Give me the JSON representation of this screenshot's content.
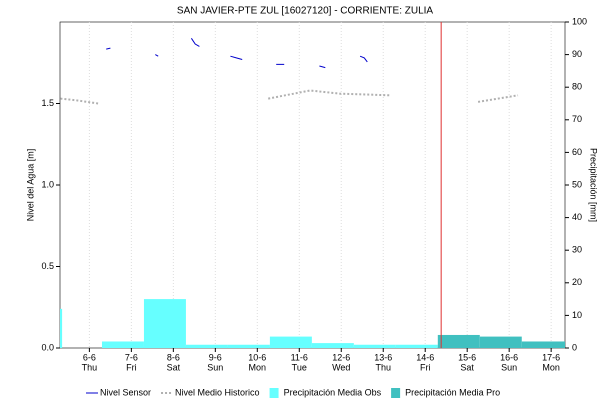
{
  "chart_data": {
    "type": "combo",
    "title": "SAN JAVIER-PTE ZUL [16027120] - CORRIENTE: ZULIA",
    "y_label": "Nivel del Agua [m]",
    "y2_label": "Precipitación [mm]",
    "xlim": [
      -0.7,
      11.33
    ],
    "xticks": [
      {
        "value": 0,
        "label": "6-6"
      },
      {
        "value": 1,
        "label": "7-6"
      },
      {
        "value": 2,
        "label": "8-6"
      },
      {
        "value": 3,
        "label": "9-6"
      },
      {
        "value": 4,
        "label": "10-6"
      },
      {
        "value": 5,
        "label": "11-6"
      },
      {
        "value": 6,
        "label": "12-6"
      },
      {
        "value": 7,
        "label": "13-6"
      },
      {
        "value": 8,
        "label": "14-6"
      },
      {
        "value": 9,
        "label": "15-6"
      },
      {
        "value": 10,
        "label": "16-6"
      },
      {
        "value": 11,
        "label": "17-6"
      }
    ],
    "xtick_days": [
      "Thu",
      "Fri",
      "Sat",
      "Sun",
      "Mon",
      "Tue",
      "Wed",
      "Thu",
      "Fri",
      "Sat",
      "Sun",
      "Mon"
    ],
    "ylim": [
      0,
      2
    ],
    "yticks": [
      {
        "value": 0,
        "label": "0.0"
      },
      0.5,
      {
        "value": 1,
        "label": "1.0"
      },
      1.5
    ],
    "y2lim": [
      0,
      100
    ],
    "y2ticks": [
      0,
      10,
      20,
      30,
      40,
      50,
      60,
      70,
      80,
      90,
      100
    ],
    "grid": true,
    "marker_x": 8.38,
    "marker_color": "#e03030",
    "series": [
      {
        "name": "Nivel Sensor",
        "kind": "line",
        "color": "#0000cc",
        "x": [
          0.4,
          0.5,
          null,
          1.57,
          1.64,
          null,
          2.43,
          2.52,
          2.62,
          null,
          3.36,
          3.5,
          3.64,
          null,
          4.45,
          4.64,
          null,
          5.48,
          5.62,
          null,
          6.45,
          6.55,
          6.62
        ],
        "values": [
          1.834,
          1.84,
          null,
          1.8,
          1.79,
          null,
          1.9,
          1.865,
          1.85,
          null,
          1.79,
          1.78,
          1.77,
          null,
          1.74,
          1.74,
          null,
          1.73,
          1.72,
          null,
          1.79,
          1.78,
          1.755
        ]
      },
      {
        "name": "Nivel Medio Historico",
        "kind": "dotted",
        "color": "#b0b0b0",
        "x": [
          -0.69,
          -0.33,
          0.21,
          null,
          4.26,
          5.26,
          5.98,
          7.17,
          null,
          9.26,
          10.21
        ],
        "values": [
          1.53,
          1.52,
          1.5,
          null,
          1.53,
          1.58,
          1.56,
          1.55,
          null,
          1.51,
          1.55
        ]
      },
      {
        "name": "Precipitación Media Obs",
        "kind": "bar",
        "axis": "y2",
        "color": "#66ffff",
        "x0": [
          -0.7,
          0.3,
          1.3,
          2.3,
          3.3,
          4.3,
          5.3,
          6.3,
          7.3
        ],
        "x1": [
          -0.65,
          1.3,
          2.3,
          3.3,
          4.3,
          5.3,
          6.3,
          7.3,
          8.3
        ],
        "values": [
          12,
          2,
          15,
          1,
          1,
          3.5,
          1.5,
          1,
          1
        ]
      },
      {
        "name": "Precipitación Media Pro",
        "kind": "bar",
        "axis": "y2",
        "color": "#40c0c0",
        "x0": [
          8.3,
          9.3,
          10.3
        ],
        "x1": [
          9.3,
          10.3,
          11.33
        ],
        "values": [
          4,
          3.5,
          2
        ]
      }
    ]
  }
}
